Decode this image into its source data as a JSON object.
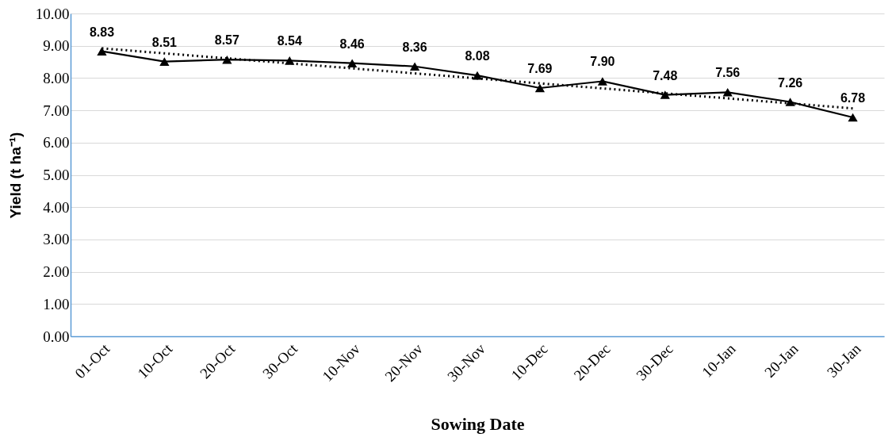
{
  "chart_data": {
    "type": "line",
    "xlabel": "Sowing Date",
    "ylabel": "Yield (t ha⁻¹)",
    "categories": [
      "01-Oct",
      "10-Oct",
      "20-Oct",
      "30-Oct",
      "10-Nov",
      "20-Nov",
      "30-Nov",
      "10-Dec",
      "20-Dec",
      "30-Dec",
      "10-Jan",
      "20-Jan",
      "30-Jan"
    ],
    "series": [
      {
        "color": "#000000",
        "values": [
          8.83,
          8.51,
          8.57,
          8.54,
          8.46,
          8.36,
          8.08,
          7.69,
          7.9,
          7.48,
          7.56,
          7.26,
          6.78
        ],
        "marker": "triangle",
        "line_style": "solid",
        "value_labels": [
          "8.83",
          "8.51",
          "8.57",
          "8.54",
          "8.46",
          "8.36",
          "8.08",
          "7.69",
          "7.90",
          "7.48",
          "7.56",
          "7.26",
          "6.78"
        ]
      },
      {
        "type": "line",
        "color": "#000000",
        "x": [
          "01-Oct",
          "30-Jan"
        ],
        "values": [
          8.92,
          7.06
        ],
        "marker": "none",
        "line_style": "dotted"
      }
    ],
    "ylim": [
      0,
      10
    ],
    "yticks": [
      {
        "value": 0,
        "label": "0.00"
      },
      {
        "value": 1,
        "label": "1.00"
      },
      {
        "value": 2,
        "label": "2.00"
      },
      {
        "value": 3,
        "label": "3.00"
      },
      {
        "value": 4,
        "label": "4.00"
      },
      {
        "value": 5,
        "label": "5.00"
      },
      {
        "value": 6,
        "label": "6.00"
      },
      {
        "value": 7,
        "label": "7.00"
      },
      {
        "value": 8,
        "label": "8.00"
      },
      {
        "value": 9,
        "label": "9.00"
      },
      {
        "value": 10,
        "label": "10.00"
      }
    ],
    "grid": "y"
  }
}
